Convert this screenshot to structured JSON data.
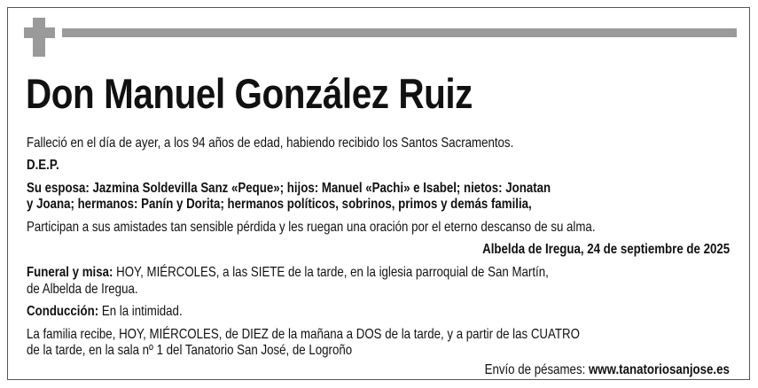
{
  "notice": {
    "title": "Don Manuel González Ruiz",
    "intro": "Falleció en el día de ayer, a los 94 años de edad, habiendo recibido los Santos Sacramentos.",
    "dep": "D.E.P.",
    "family_line1": "Su esposa: Jazmina Soldevilla Sanz «Peque»; hijos: Manuel «Pachi» e Isabel; nietos: Jonatan",
    "family_line2": "y Joana; hermanos: Panín y Dorita; hermanos políticos, sobrinos, primos y demás familia,",
    "prayer": "Participan a sus amistades tan sensible pérdida y les ruegan una oración por el eterno descanso de su alma.",
    "place_date": "Albelda de Iregua, 24 de septiembre de 2025",
    "funeral_label": "Funeral y misa:",
    "funeral_line1": " HOY, MIÉRCOLES, a las SIETE de la tarde, en la iglesia parroquial de San Martín,",
    "funeral_line2": "de Albelda de Iregua.",
    "conduccion_label": "Conducción:",
    "conduccion_text": " En la intimidad.",
    "visit_line1": "La familia recibe, HOY, MIÉRCOLES, de DIEZ de la mañana a DOS de la tarde, y a partir de las CUATRO",
    "visit_line2": "de la tarde, en la sala nº 1 del Tanatorio San José, de Logroño",
    "condolences_label": "Envío de pésames: ",
    "condolences_url": "www.tanatoriosanjose.es"
  }
}
